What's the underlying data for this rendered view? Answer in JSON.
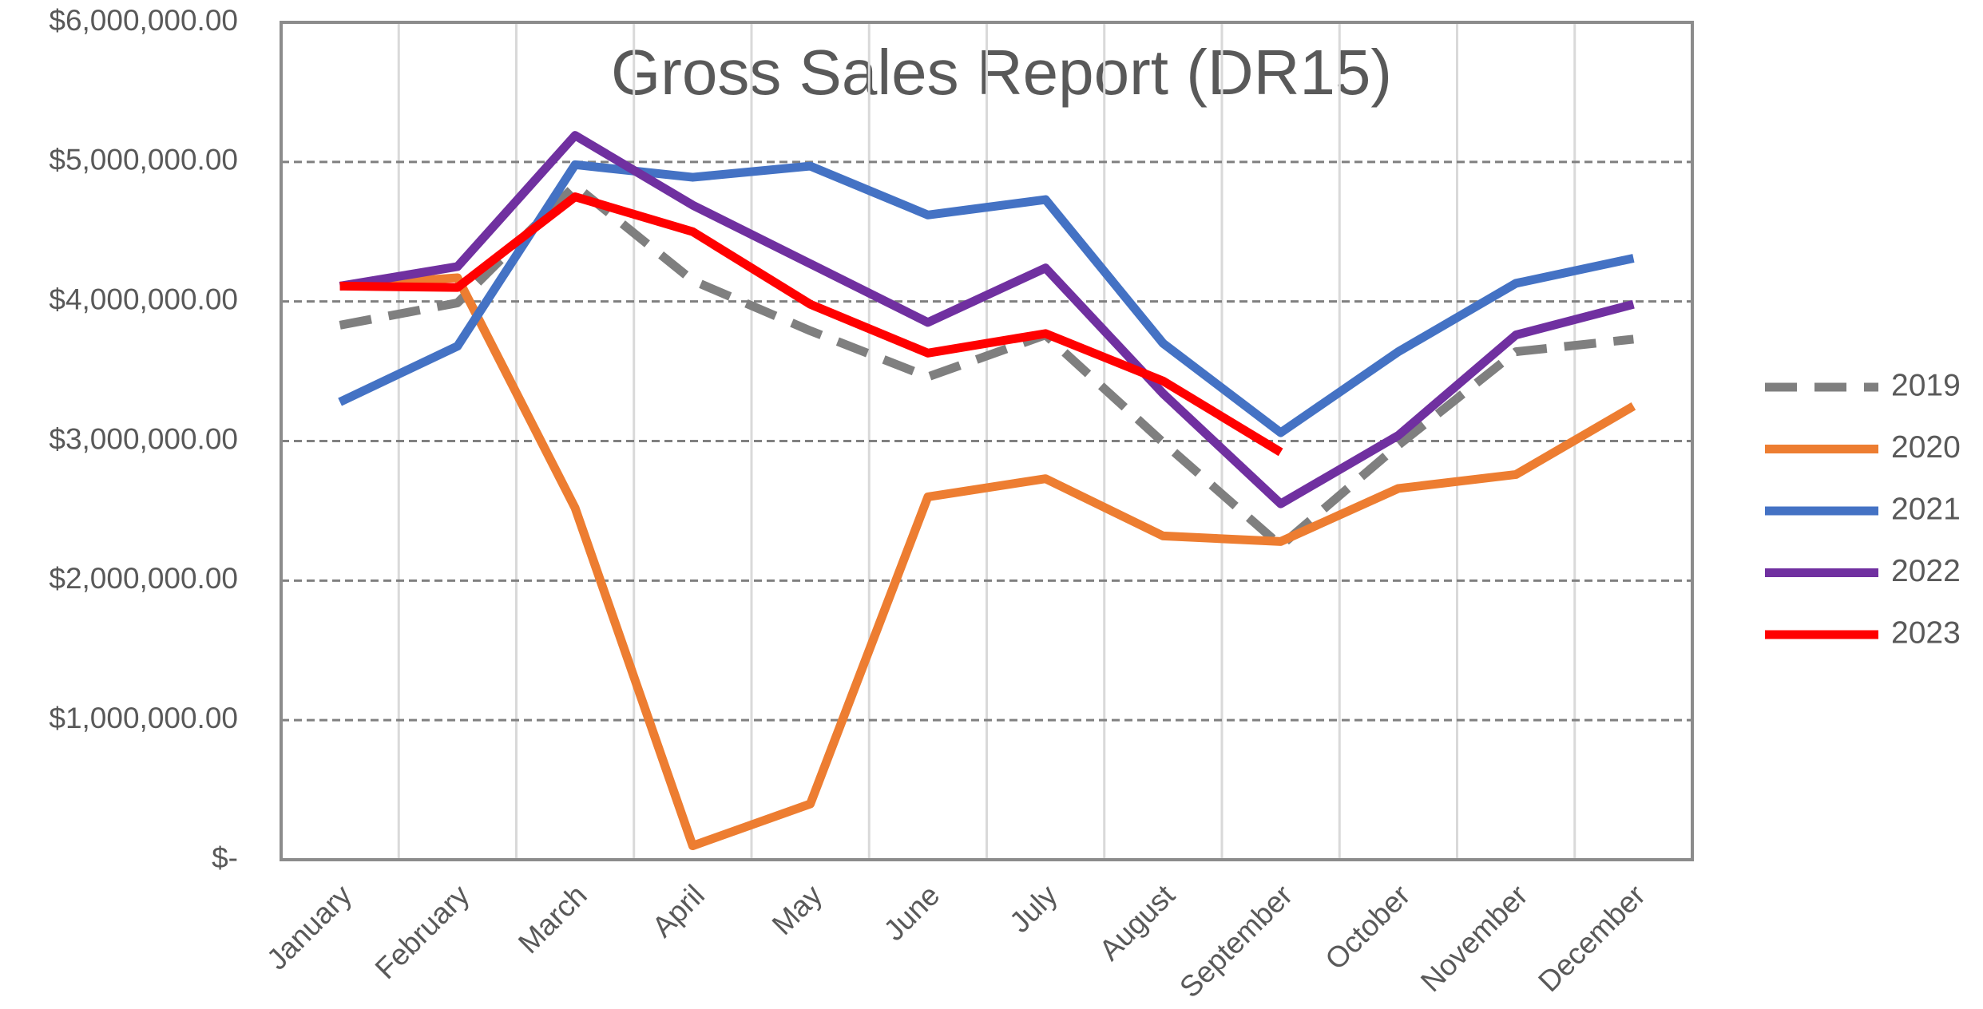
{
  "chart_data": {
    "type": "line",
    "title": "Gross Sales Report (DR15)",
    "categories": [
      "January",
      "February",
      "March",
      "April",
      "May",
      "June",
      "July",
      "August",
      "September",
      "October",
      "November",
      "December"
    ],
    "series": [
      {
        "name": "2019",
        "color": "#7f7f7f",
        "dashed": true,
        "values": [
          3830000,
          3990000,
          4830000,
          4150000,
          3790000,
          3460000,
          3760000,
          2990000,
          2250000,
          2970000,
          3640000,
          3730000
        ]
      },
      {
        "name": "2020",
        "color": "#ed7d31",
        "values": [
          4110000,
          4170000,
          2520000,
          100000,
          400000,
          2600000,
          2730000,
          2320000,
          2280000,
          2660000,
          2760000,
          3250000
        ]
      },
      {
        "name": "2021",
        "color": "#4472c4",
        "values": [
          3280000,
          3680000,
          4980000,
          4890000,
          4970000,
          4620000,
          4730000,
          3700000,
          3060000,
          3640000,
          4130000,
          4310000
        ]
      },
      {
        "name": "2022",
        "color": "#7030a0",
        "values": [
          4110000,
          4250000,
          5190000,
          4690000,
          4270000,
          3850000,
          4240000,
          3340000,
          2550000,
          3040000,
          3760000,
          3980000
        ]
      },
      {
        "name": "2023",
        "color": "#ff0000",
        "values": [
          4110000,
          4100000,
          4750000,
          4500000,
          3980000,
          3630000,
          3770000,
          3430000,
          2920000,
          null,
          null,
          null
        ]
      }
    ],
    "ylim": [
      0,
      6000000
    ],
    "yticks": [
      {
        "value": 0,
        "label": "$-"
      },
      {
        "value": 1000000,
        "label": "$1,000,000.00"
      },
      {
        "value": 2000000,
        "label": "$2,000,000.00"
      },
      {
        "value": 3000000,
        "label": "$3,000,000.00"
      },
      {
        "value": 4000000,
        "label": "$4,000,000.00"
      },
      {
        "value": 5000000,
        "label": "$5,000,000.00"
      },
      {
        "value": 6000000,
        "label": "$6,000,000.00"
      }
    ],
    "grid": true,
    "legend": "right"
  }
}
